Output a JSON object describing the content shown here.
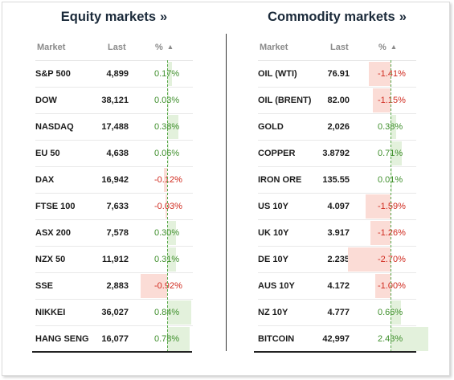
{
  "colors": {
    "positive_bar": "#e3f1dc",
    "negative_bar": "#fbdcd6",
    "positive_text": "#3f8f2c",
    "negative_text": "#d02a1e",
    "zero_line": "#58a84a"
  },
  "equity": {
    "title": "Equity markets",
    "title_arrow": "»",
    "headers": {
      "market": "Market",
      "last": "Last",
      "pct": "%",
      "sort_icon": "▲"
    },
    "rows": [
      {
        "market": "S&P 500",
        "last": "4,899",
        "pct": "0.17%",
        "change": 0.17
      },
      {
        "market": "DOW",
        "last": "38,121",
        "pct": "0.03%",
        "change": 0.03
      },
      {
        "market": "NASDAQ",
        "last": "17,488",
        "pct": "0.38%",
        "change": 0.38
      },
      {
        "market": "EU 50",
        "last": "4,638",
        "pct": "0.06%",
        "change": 0.06
      },
      {
        "market": "DAX",
        "last": "16,942",
        "pct": "-0.12%",
        "change": -0.12
      },
      {
        "market": "FTSE 100",
        "last": "7,633",
        "pct": "-0.03%",
        "change": -0.03
      },
      {
        "market": "ASX 200",
        "last": "7,578",
        "pct": "0.30%",
        "change": 0.3
      },
      {
        "market": "NZX 50",
        "last": "11,912",
        "pct": "0.31%",
        "change": 0.31
      },
      {
        "market": "SSE",
        "last": "2,883",
        "pct": "-0.92%",
        "change": -0.92
      },
      {
        "market": "NIKKEI",
        "last": "36,027",
        "pct": "0.84%",
        "change": 0.84
      },
      {
        "market": "HANG SENG",
        "last": "16,077",
        "pct": "0.78%",
        "change": 0.78
      }
    ]
  },
  "commodity": {
    "title": "Commodity markets",
    "title_arrow": "»",
    "headers": {
      "market": "Market",
      "last": "Last",
      "pct": "%",
      "sort_icon": "▲"
    },
    "rows": [
      {
        "market": "OIL (WTI)",
        "last": "76.91",
        "pct": "-1.41%",
        "change": -1.41
      },
      {
        "market": "OIL (BRENT)",
        "last": "82.00",
        "pct": "-1.15%",
        "change": -1.15
      },
      {
        "market": "GOLD",
        "last": "2,026",
        "pct": "0.38%",
        "change": 0.38
      },
      {
        "market": "COPPER",
        "last": "3.8792",
        "pct": "0.71%",
        "change": 0.71
      },
      {
        "market": "IRON ORE",
        "last": "135.55",
        "pct": "0.01%",
        "change": 0.01
      },
      {
        "market": "US 10Y",
        "last": "4.097",
        "pct": "-1.59%",
        "change": -1.59
      },
      {
        "market": "UK 10Y",
        "last": "3.917",
        "pct": "-1.26%",
        "change": -1.26
      },
      {
        "market": "DE 10Y",
        "last": "2.235",
        "pct": "-2.70%",
        "change": -2.7
      },
      {
        "market": "AUS 10Y",
        "last": "4.172",
        "pct": "-1.00%",
        "change": -1.0
      },
      {
        "market": "NZ 10Y",
        "last": "4.777",
        "pct": "0.66%",
        "change": 0.66
      },
      {
        "market": "BITCOIN",
        "last": "42,997",
        "pct": "2.43%",
        "change": 2.43
      }
    ]
  }
}
